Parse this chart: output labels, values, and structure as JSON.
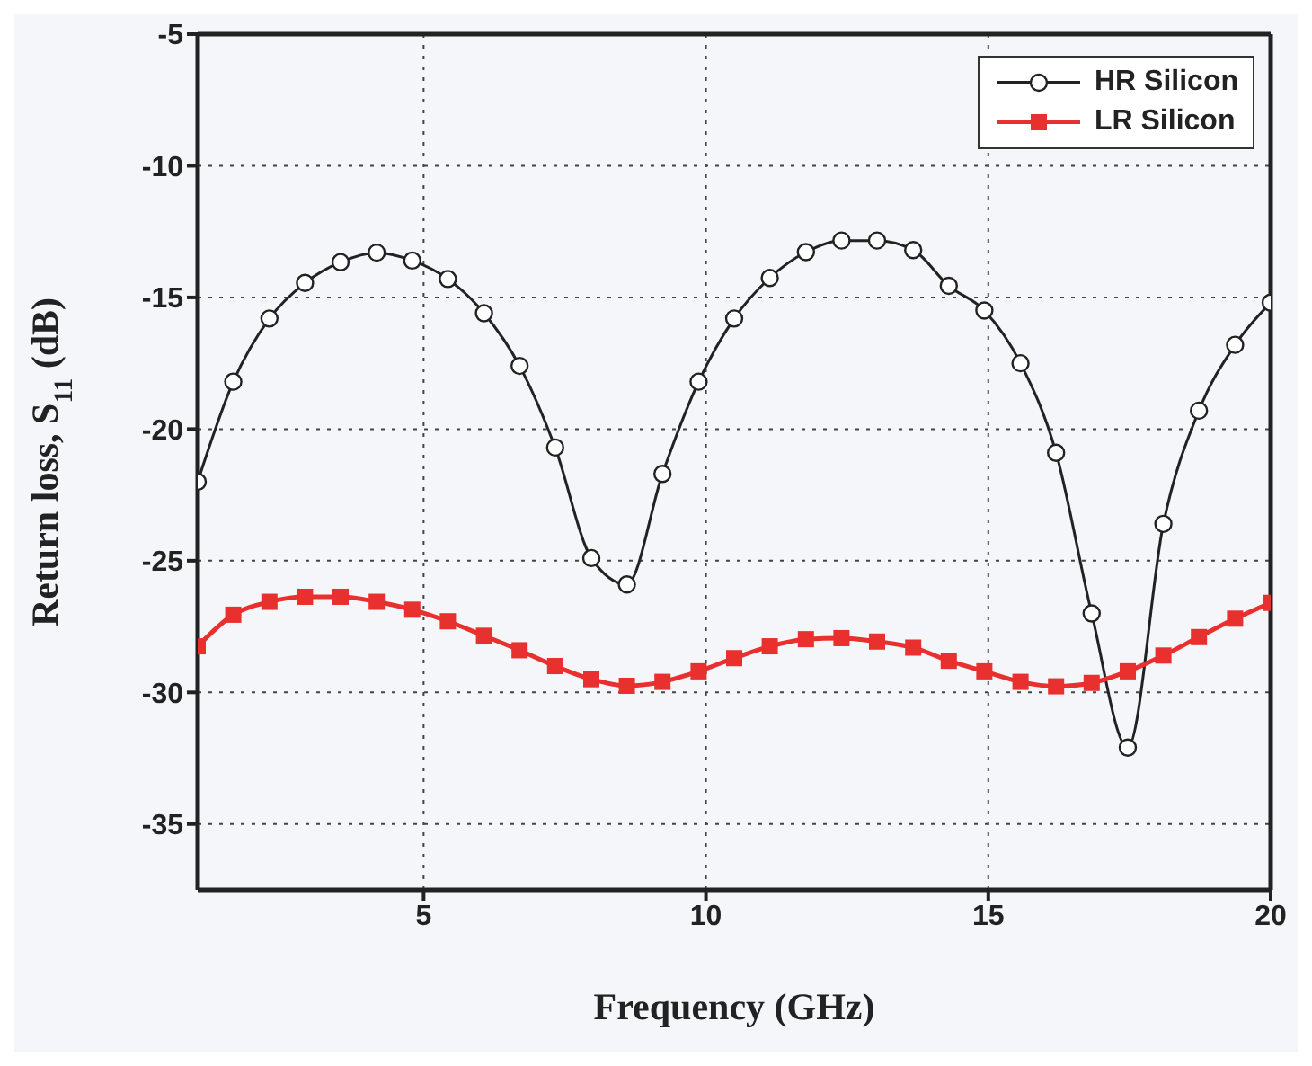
{
  "chart_data": {
    "type": "line",
    "xlabel": "Frequency (GHz)",
    "ylabel": "Return loss, S$_{11}$ (dB)",
    "x": [
      1,
      1.63,
      2.27,
      2.9,
      3.53,
      4.17,
      4.8,
      5.43,
      6.07,
      6.7,
      7.33,
      7.97,
      8.6,
      9.23,
      9.87,
      10.5,
      11.13,
      11.77,
      12.4,
      13.03,
      13.67,
      14.3,
      14.93,
      15.57,
      16.2,
      16.83,
      17.47,
      18.1,
      18.73,
      19.37,
      20
    ],
    "series": [
      {
        "name": "HR Silicon",
        "color": "#222222",
        "marker": "circle",
        "values": [
          -22.0,
          -18.2,
          -15.8,
          -14.45,
          -13.66,
          -13.3,
          -13.6,
          -14.3,
          -15.6,
          -17.6,
          -20.7,
          -24.9,
          -25.9,
          -21.7,
          -18.2,
          -15.8,
          -14.26,
          -13.28,
          -12.84,
          -12.84,
          -13.2,
          -14.56,
          -15.5,
          -17.5,
          -20.9,
          -27.0,
          -32.1,
          -23.6,
          -19.3,
          -16.8,
          -15.2
        ]
      },
      {
        "name": "LR Silicon",
        "color": "#e8302e",
        "marker": "square",
        "values": [
          -28.25,
          -27.05,
          -26.56,
          -26.37,
          -26.37,
          -26.56,
          -26.86,
          -27.3,
          -27.85,
          -28.4,
          -29.0,
          -29.5,
          -29.75,
          -29.6,
          -29.2,
          -28.7,
          -28.25,
          -27.98,
          -27.94,
          -28.07,
          -28.3,
          -28.8,
          -29.2,
          -29.6,
          -29.77,
          -29.64,
          -29.2,
          -28.6,
          -27.9,
          -27.2,
          -26.6
        ]
      }
    ],
    "xlim": [
      1,
      20
    ],
    "xticks": [
      5,
      10,
      15,
      20
    ],
    "ylim": [
      -37.5,
      -5
    ],
    "yticks": [
      -35,
      -30,
      -25,
      -20,
      -15,
      -10,
      -5
    ],
    "grid": true,
    "legend": "top right",
    "line_style": "solid"
  }
}
